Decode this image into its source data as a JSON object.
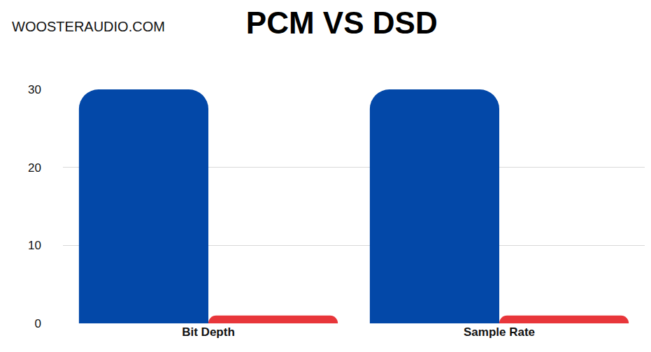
{
  "chart_data": {
    "type": "bar",
    "title": "PCM VS DSD",
    "annotations": [
      "WOOSTERAUDIO.COM"
    ],
    "categories": [
      "Bit Depth",
      "Sample Rate"
    ],
    "series": [
      {
        "color": "#0348a8",
        "values": [
          30,
          30
        ]
      },
      {
        "color": "#e8363a",
        "values": [
          1,
          1
        ]
      }
    ],
    "ylim": [
      0,
      30
    ],
    "yticks": [
      0,
      10,
      20,
      30
    ],
    "grid": true
  }
}
